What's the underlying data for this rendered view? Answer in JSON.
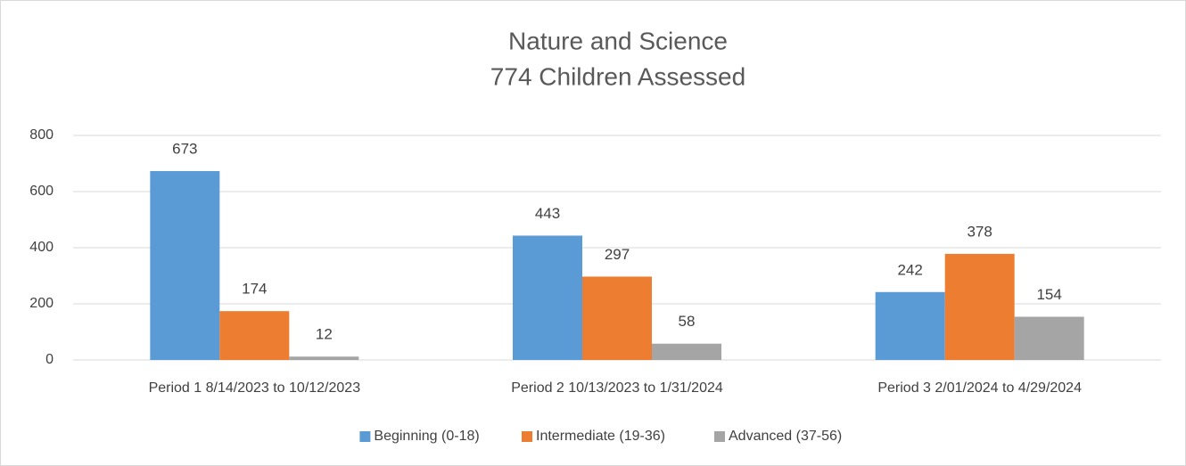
{
  "chart_data": {
    "type": "bar",
    "title": "Nature and Science",
    "subtitle": "774 Children Assessed",
    "categories": [
      "Period 1 8/14/2023 to 10/12/2023",
      "Period 2 10/13/2023 to 1/31/2024",
      "Period 3 2/01/2024 to 4/29/2024"
    ],
    "series": [
      {
        "name": "Beginning (0-18)",
        "color": "#5b9bd5",
        "values": [
          673,
          443,
          242
        ]
      },
      {
        "name": "Intermediate (19-36)",
        "color": "#ed7d31",
        "values": [
          174,
          297,
          378
        ]
      },
      {
        "name": "Advanced (37-56)",
        "color": "#a5a5a5",
        "values": [
          12,
          58,
          154
        ]
      }
    ],
    "ylim": [
      0,
      800
    ],
    "yticks": [
      0,
      200,
      400,
      600,
      800
    ],
    "grid": true,
    "legend": "bottom"
  }
}
